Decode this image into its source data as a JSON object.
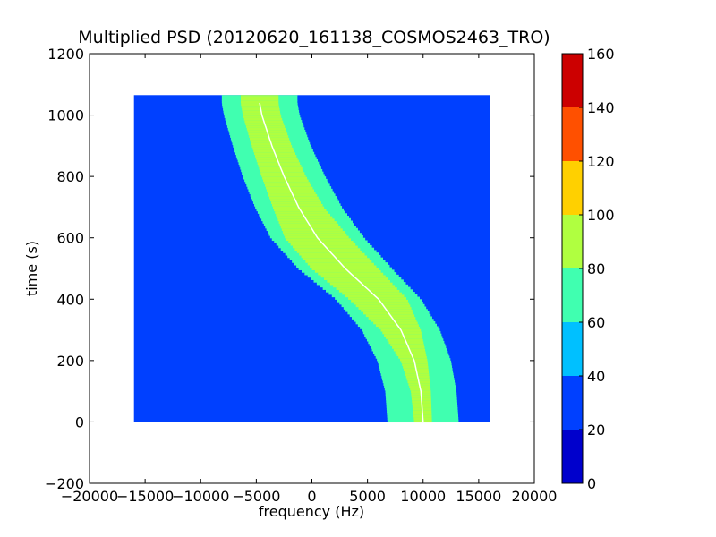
{
  "chart_data": {
    "type": "heatmap",
    "title": "Multiplied PSD (20120620_161138_COSMOS2463_TRO)",
    "xlabel": "frequency (Hz)",
    "ylabel": "time (s)",
    "xlim": [
      -20000,
      20000
    ],
    "ylim": [
      -200,
      1200
    ],
    "x_ticks": [
      -20000,
      -15000,
      -10000,
      -5000,
      0,
      5000,
      10000,
      15000,
      20000
    ],
    "y_ticks": [
      -200,
      0,
      200,
      400,
      600,
      800,
      1000,
      1200
    ],
    "x_tick_labels": [
      "−20000",
      "−15000",
      "−10000",
      "−5000",
      "0",
      "5000",
      "10000",
      "15000",
      "20000"
    ],
    "y_tick_labels": [
      "−200",
      "0",
      "200",
      "400",
      "600",
      "800",
      "1000",
      "1200"
    ],
    "data_extent": {
      "x": [
        -16000,
        16000
      ],
      "y": [
        0,
        1065
      ]
    },
    "background_level": 30,
    "signal_track": {
      "description_time": [
        0,
        100,
        200,
        300,
        400,
        500,
        600,
        700,
        800,
        900,
        1000,
        1040
      ],
      "center_frequency": [
        10000,
        9800,
        9200,
        8000,
        6000,
        3000,
        500,
        -1200,
        -2500,
        -3600,
        -4500,
        -4700
      ],
      "core_halfwidth": [
        800,
        900,
        1200,
        1800,
        2600,
        3000,
        2900,
        2300,
        2000,
        1800,
        1700,
        1700
      ],
      "band_halfwidth": [
        3200,
        3200,
        3300,
        3500,
        3800,
        4200,
        4200,
        3900,
        3700,
        3500,
        3400,
        3400
      ],
      "core_level": 85,
      "band_level": 65
    },
    "colorbar": {
      "levels": [
        0,
        20,
        40,
        60,
        80,
        100,
        120,
        140,
        160
      ],
      "tick_labels": [
        "0",
        "20",
        "40",
        "60",
        "80",
        "100",
        "120",
        "140",
        "160"
      ],
      "colors": [
        "#0000cc",
        "#0040ff",
        "#00c0ff",
        "#40ffb0",
        "#b0ff40",
        "#ffd000",
        "#ff5000",
        "#cc0000"
      ]
    },
    "grid": false
  }
}
